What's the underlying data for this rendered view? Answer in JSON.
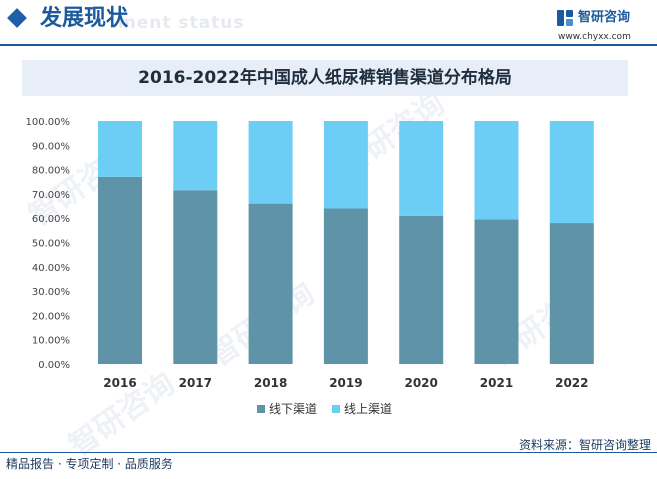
{
  "header": {
    "section_title": "发展现状",
    "section_subtitle": "ment status",
    "brand_name": "智研咨询",
    "brand_url": "www.chyxx.com"
  },
  "watermark_text": "智研咨询",
  "chart_data": {
    "type": "bar",
    "stacked": true,
    "title": "2016-2022年中国成人纸尿裤销售渠道分布格局",
    "categories": [
      "2016",
      "2017",
      "2018",
      "2019",
      "2020",
      "2021",
      "2022"
    ],
    "series": [
      {
        "name": "线下渠道",
        "color": "#5f93a8",
        "values": [
          77.0,
          71.5,
          66.0,
          64.0,
          61.0,
          59.5,
          58.0
        ]
      },
      {
        "name": "线上渠道",
        "color": "#6ccef5",
        "values": [
          23.0,
          28.5,
          34.0,
          36.0,
          39.0,
          40.5,
          42.0
        ]
      }
    ],
    "y_ticks": [
      "100.00%",
      "90.00%",
      "80.00%",
      "70.00%",
      "60.00%",
      "50.00%",
      "40.00%",
      "30.00%",
      "20.00%",
      "10.00%",
      "0.00%"
    ],
    "ylim": [
      0,
      100
    ],
    "legend": "bottom-center",
    "grid": false
  },
  "footer": {
    "left_text": "精品报告 · 专项定制 · 品质服务",
    "right_text": "资料来源：智研咨询整理"
  }
}
